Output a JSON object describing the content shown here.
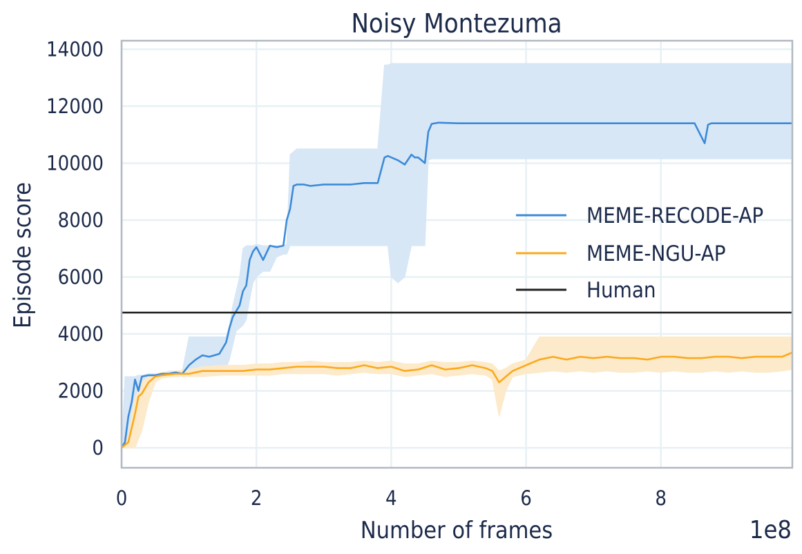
{
  "chart_data": {
    "type": "line",
    "title": "Noisy Montezuma",
    "xlabel": "Number of frames",
    "ylabel": "Episode score",
    "x_offset_label": "1e8",
    "xlim": [
      0,
      9.95
    ],
    "ylim": [
      -700,
      14300
    ],
    "xticks": [
      0,
      2,
      4,
      6,
      8
    ],
    "yticks": [
      0,
      2000,
      4000,
      6000,
      8000,
      10000,
      12000,
      14000
    ],
    "grid": true,
    "legend_position": "center-right",
    "series": [
      {
        "name": "MEME-RECODE-AP",
        "color": "#3b8ad8",
        "band_color": "#d6e6f6",
        "x": [
          0,
          0.05,
          0.1,
          0.15,
          0.2,
          0.25,
          0.3,
          0.4,
          0.5,
          0.6,
          0.7,
          0.8,
          0.9,
          1.0,
          1.1,
          1.2,
          1.3,
          1.45,
          1.55,
          1.6,
          1.65,
          1.7,
          1.75,
          1.8,
          1.85,
          1.9,
          1.95,
          2.0,
          2.1,
          2.2,
          2.3,
          2.4,
          2.45,
          2.5,
          2.55,
          2.6,
          2.7,
          2.8,
          3.0,
          3.2,
          3.4,
          3.6,
          3.8,
          3.9,
          3.95,
          4.0,
          4.1,
          4.2,
          4.3,
          4.35,
          4.4,
          4.5,
          4.55,
          4.6,
          4.7,
          5.0,
          5.5,
          6.0,
          6.5,
          7.0,
          7.5,
          8.0,
          8.5,
          8.65,
          8.7,
          8.75,
          9.0,
          9.5,
          9.95
        ],
        "y": [
          0,
          200,
          1100,
          1600,
          2400,
          2000,
          2500,
          2550,
          2550,
          2600,
          2600,
          2650,
          2600,
          2900,
          3100,
          3250,
          3200,
          3300,
          3700,
          4200,
          4600,
          4800,
          5000,
          5500,
          5700,
          6600,
          6900,
          7050,
          6600,
          7100,
          7050,
          7100,
          8000,
          8400,
          9200,
          9250,
          9250,
          9200,
          9250,
          9250,
          9250,
          9300,
          9300,
          10200,
          10250,
          10200,
          10100,
          9950,
          10300,
          10200,
          10200,
          10000,
          11100,
          11380,
          11420,
          11400,
          11400,
          11400,
          11400,
          11400,
          11400,
          11400,
          11400,
          10700,
          11350,
          11400,
          11400,
          11400,
          11400
        ],
        "upper": [
          0,
          2500,
          2500,
          2500,
          2500,
          2550,
          2550,
          2600,
          2600,
          2600,
          2700,
          2700,
          2700,
          3900,
          3900,
          3900,
          3900,
          3900,
          3900,
          4300,
          5000,
          5500,
          6000,
          7000,
          7100,
          7100,
          7100,
          7150,
          7100,
          7100,
          7100,
          7100,
          7150,
          10300,
          10400,
          10500,
          10500,
          10500,
          10500,
          10500,
          10500,
          10500,
          10500,
          13450,
          13450,
          13500,
          13500,
          13500,
          13500,
          13500,
          13500,
          13500,
          13500,
          13500,
          13500,
          13500,
          13500,
          13500,
          13500,
          13500,
          13500,
          13500,
          13500,
          13500,
          13500,
          13500,
          13500,
          13500,
          13500
        ],
        "lower": [
          0,
          0,
          0,
          400,
          500,
          800,
          1700,
          2300,
          2450,
          2500,
          2500,
          2550,
          2550,
          2550,
          2600,
          2600,
          2650,
          2700,
          2800,
          3100,
          3600,
          4100,
          4200,
          4300,
          4500,
          5200,
          5800,
          6000,
          6200,
          6200,
          6700,
          6800,
          6800,
          7100,
          7100,
          7100,
          7100,
          7100,
          7100,
          7100,
          7100,
          7100,
          7100,
          7100,
          7100,
          6000,
          5800,
          6000,
          7100,
          7100,
          7100,
          7100,
          10100,
          10150,
          10150,
          10150,
          10150,
          10150,
          10150,
          10150,
          10150,
          10150,
          10150,
          10150,
          10150,
          10150,
          10150,
          10150,
          10150
        ]
      },
      {
        "name": "MEME-NGU-AP",
        "color": "#fba91d",
        "band_color": "#fde9c7",
        "x": [
          0,
          0.1,
          0.2,
          0.25,
          0.3,
          0.4,
          0.5,
          0.6,
          0.8,
          1.0,
          1.2,
          1.5,
          1.8,
          2.0,
          2.2,
          2.4,
          2.6,
          2.8,
          3.0,
          3.2,
          3.4,
          3.6,
          3.8,
          4.0,
          4.2,
          4.4,
          4.6,
          4.8,
          5.0,
          5.2,
          5.4,
          5.5,
          5.6,
          5.7,
          5.8,
          6.0,
          6.2,
          6.4,
          6.6,
          6.8,
          7.0,
          7.2,
          7.4,
          7.6,
          7.8,
          8.0,
          8.2,
          8.4,
          8.6,
          8.8,
          9.0,
          9.2,
          9.4,
          9.6,
          9.8,
          9.95
        ],
        "y": [
          0,
          200,
          1200,
          1800,
          1900,
          2300,
          2500,
          2550,
          2600,
          2600,
          2700,
          2700,
          2700,
          2750,
          2750,
          2800,
          2850,
          2850,
          2850,
          2800,
          2800,
          2900,
          2800,
          2850,
          2700,
          2750,
          2900,
          2750,
          2800,
          2900,
          2800,
          2700,
          2300,
          2500,
          2700,
          2900,
          3100,
          3200,
          3100,
          3200,
          3150,
          3200,
          3150,
          3150,
          3100,
          3200,
          3200,
          3150,
          3150,
          3200,
          3200,
          3150,
          3200,
          3200,
          3200,
          3350
        ],
        "upper": [
          0,
          400,
          1800,
          2000,
          2300,
          2500,
          2600,
          2650,
          2700,
          2750,
          2850,
          2900,
          2900,
          2950,
          2950,
          3000,
          3000,
          3050,
          3000,
          3000,
          3000,
          3050,
          3000,
          3050,
          2950,
          2950,
          3050,
          3000,
          3000,
          3050,
          3000,
          2950,
          2700,
          2800,
          2950,
          3100,
          3900,
          3900,
          3900,
          3900,
          3900,
          3900,
          3900,
          3900,
          3900,
          3900,
          3900,
          3900,
          3900,
          3900,
          3900,
          3900,
          3900,
          3900,
          3900,
          3900
        ],
        "lower": [
          0,
          0,
          0,
          300,
          600,
          1600,
          2300,
          2450,
          2500,
          2500,
          2500,
          2550,
          2550,
          2550,
          2550,
          2600,
          2600,
          2600,
          2600,
          2550,
          2600,
          2650,
          2600,
          2600,
          2500,
          2550,
          2600,
          2500,
          2550,
          2600,
          2550,
          2400,
          1100,
          2000,
          2500,
          2600,
          2650,
          2700,
          2650,
          2700,
          2650,
          2700,
          2650,
          2650,
          2700,
          2650,
          2700,
          2650,
          2650,
          2700,
          2650,
          2700,
          2650,
          2650,
          2700,
          2750
        ]
      },
      {
        "name": "Human",
        "color": "#222222",
        "x": [
          0,
          9.95
        ],
        "y": [
          4750,
          4750
        ]
      }
    ]
  }
}
